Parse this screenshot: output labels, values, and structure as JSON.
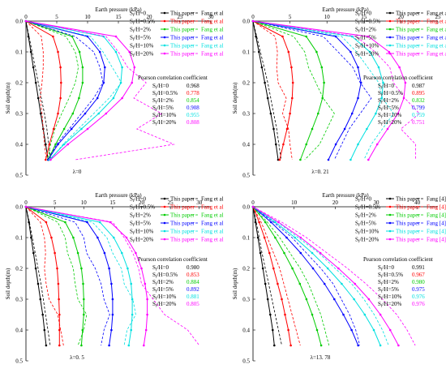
{
  "figure": {
    "common": {
      "x_label": "Earth pressure (kPa)",
      "y_label": "Soil depth(m)",
      "depth_ticks": [
        "0.0",
        "0.1",
        "0.2",
        "0.3",
        "0.4",
        "0.5"
      ],
      "corr_title": "Pearson correlation coefficient",
      "depth": [
        0.0,
        0.05,
        0.1,
        0.15,
        0.2,
        0.25,
        0.3,
        0.35,
        0.4,
        0.45
      ]
    },
    "series_style": [
      {
        "key": "0",
        "color": "#000000"
      },
      {
        "key": "0.5",
        "color": "#ff0000"
      },
      {
        "key": "2",
        "color": "#00cc00"
      },
      {
        "key": "5",
        "color": "#0000ff"
      },
      {
        "key": "10",
        "color": "#00e0e0"
      },
      {
        "key": "20",
        "color": "#ff00ff"
      }
    ]
  },
  "chart_data": [
    {
      "type": "line",
      "panel": "a",
      "lambda_label": "λ=0",
      "xlabel": "Earth pressure (kPa)",
      "ylabel": "Soil depth(m)",
      "xlim": [
        0,
        30
      ],
      "ylim": [
        0,
        0.5
      ],
      "x_ticks": [
        "0",
        "5",
        "10",
        "15",
        "20",
        "25",
        "30"
      ],
      "legend": {
        "ratio": [
          "S_f/H=0",
          "S_f/H=0.5%",
          "S_f/H=2%",
          "S_f/H=5%",
          "S_f/H=10%",
          "S_f/H=20%"
        ],
        "paper": "This paper",
        "ref": "Fang et al"
      },
      "correlation": [
        {
          "label": "S_f/H=0",
          "value": "0.968"
        },
        {
          "label": "S_f/H=0.5%",
          "value": "0.778"
        },
        {
          "label": "S_f/H=2%",
          "value": "0.854"
        },
        {
          "label": "S_f/H=5%",
          "value": "0.908"
        },
        {
          "label": "S_f/H=10%",
          "value": "0.955"
        },
        {
          "label": "S_f/H=20%",
          "value": "0.808"
        }
      ],
      "series": [
        {
          "name": "S_f/H=0 This paper",
          "x": [
            0.0,
            0.4,
            0.8,
            1.2,
            1.6,
            2.0,
            2.4,
            2.8,
            3.2,
            3.6
          ],
          "style": "paper"
        },
        {
          "name": "S_f/H=0 Fang et al",
          "x": [
            0.0,
            0.5,
            1.0,
            1.5,
            2.0,
            2.5,
            3.0,
            3.4,
            3.7,
            4.0
          ],
          "style": "ref"
        },
        {
          "name": "S_f/H=0.5% This paper",
          "x": [
            0.0,
            4.4,
            5.2,
            5.6,
            5.7,
            5.6,
            5.2,
            4.5,
            3.8,
            3.2
          ],
          "style": "paper"
        },
        {
          "name": "S_f/H=0.5% Fang et al",
          "x": [
            0.0,
            2.5,
            2.8,
            2.8,
            2.6,
            2.3,
            2.6,
            2.8,
            3.0,
            3.3
          ],
          "style": "ref"
        },
        {
          "name": "S_f/H=2% This paper",
          "x": [
            0.0,
            7.5,
            8.7,
            9.2,
            9.2,
            8.6,
            7.6,
            6.2,
            4.8,
            3.6
          ],
          "style": "paper"
        },
        {
          "name": "S_f/H=2% Fang et al",
          "x": [
            0.0,
            6.5,
            8.0,
            8.5,
            8.0,
            7.0,
            5.8,
            4.7,
            4.0,
            3.5
          ],
          "style": "ref"
        },
        {
          "name": "S_f/H=5% This paper",
          "x": [
            0.0,
            10.0,
            12.0,
            12.8,
            12.6,
            11.6,
            9.6,
            7.4,
            5.2,
            3.6
          ],
          "style": "paper"
        },
        {
          "name": "S_f/H=5% Fang et al",
          "x": [
            0.0,
            8.0,
            11.0,
            12.0,
            12.5,
            11.0,
            9.0,
            7.0,
            5.0,
            3.6
          ],
          "style": "ref"
        },
        {
          "name": "S_f/H=10% This paper",
          "x": [
            0.0,
            12.6,
            14.6,
            15.6,
            15.4,
            14.2,
            11.8,
            9.0,
            6.2,
            3.8
          ],
          "style": "paper"
        },
        {
          "name": "S_f/H=10% Fang et al",
          "x": [
            0.0,
            10.5,
            12.5,
            14.0,
            15.5,
            13.5,
            11.0,
            8.5,
            6.0,
            4.0
          ],
          "style": "ref"
        },
        {
          "name": "S_f/H=20% This paper",
          "x": [
            0.0,
            14.6,
            16.8,
            17.6,
            17.2,
            15.6,
            13.0,
            10.0,
            6.8,
            4.0
          ],
          "style": "paper"
        },
        {
          "name": "S_f/H=20% Fang et al",
          "x": [
            0.0,
            13.0,
            15.0,
            16.5,
            19.5,
            17.5,
            22.0,
            18.0,
            24.0,
            8.0
          ],
          "style": "ref"
        }
      ]
    },
    {
      "type": "line",
      "panel": "b",
      "lambda_label": "λ=0. 21",
      "xlabel": "Earth pressure (kPa)",
      "ylabel": "Soil depth(m)",
      "xlim": [
        0,
        25
      ],
      "ylim": [
        0,
        0.5
      ],
      "x_ticks": [
        "0",
        "5",
        "10",
        "15",
        "20",
        "25"
      ],
      "legend": {
        "ratio": [
          "S_f/H=0",
          "S_f/H=0.5%",
          "S_f/H=2%",
          "S_f/H=5%",
          "S_f/H=10%",
          "S_f/H=20%"
        ],
        "paper": "This paper",
        "ref": "Fang et al"
      },
      "correlation": [
        {
          "label": "S_f/H=0",
          "value": "0.987"
        },
        {
          "label": "S_f/H=0.5%",
          "value": "0.895"
        },
        {
          "label": "S_f/H=2%",
          "value": "0.832"
        },
        {
          "label": "S_f/H=5%",
          "value": "0.799"
        },
        {
          "label": "S_f/H=10%",
          "value": "0.759"
        },
        {
          "label": "S_f/H=20%",
          "value": "0.751"
        }
      ],
      "series": [
        {
          "name": "S_f/H=0 This paper",
          "x": [
            0.0,
            0.4,
            0.8,
            1.2,
            1.6,
            2.0,
            2.4,
            2.8,
            3.1,
            3.4
          ],
          "style": "paper"
        },
        {
          "name": "S_f/H=0 Fang et al",
          "x": [
            0.0,
            0.5,
            1.0,
            1.5,
            2.0,
            2.4,
            2.8,
            3.2,
            3.5,
            3.8
          ],
          "style": "ref"
        },
        {
          "name": "S_f/H=0.5% This paper",
          "x": [
            0.0,
            4.0,
            4.8,
            5.2,
            5.4,
            5.3,
            5.0,
            4.6,
            4.1,
            3.6
          ],
          "style": "paper"
        },
        {
          "name": "S_f/H=0.5% Fang et al",
          "x": [
            0.0,
            3.0,
            3.3,
            3.2,
            3.4,
            4.5,
            4.0,
            4.8,
            5.0,
            5.3
          ],
          "style": "ref"
        },
        {
          "name": "S_f/H=2% This paper",
          "x": [
            0.0,
            7.2,
            8.6,
            9.3,
            9.6,
            9.4,
            8.8,
            8.0,
            7.2,
            6.4
          ],
          "style": "paper"
        },
        {
          "name": "S_f/H=2% Fang et al",
          "x": [
            0.0,
            5.5,
            7.0,
            7.5,
            8.5,
            9.5,
            11.0,
            10.0,
            9.0,
            7.0
          ],
          "style": "ref"
        },
        {
          "name": "S_f/H=5% This paper",
          "x": [
            0.0,
            11.2,
            13.2,
            14.2,
            14.6,
            14.2,
            13.4,
            12.4,
            11.2,
            10.2
          ],
          "style": "paper"
        },
        {
          "name": "S_f/H=5% Fang et al",
          "x": [
            0.0,
            9.5,
            11.5,
            13.5,
            14.5,
            16.0,
            14.5,
            13.0,
            12.0,
            11.0
          ],
          "style": "ref"
        },
        {
          "name": "S_f/H=10% This paper",
          "x": [
            0.0,
            13.4,
            15.8,
            17.0,
            17.6,
            17.4,
            16.6,
            15.4,
            14.2,
            13.2
          ],
          "style": "paper"
        },
        {
          "name": "S_f/H=10% Fang et al",
          "x": [
            0.0,
            12.0,
            14.0,
            15.5,
            17.0,
            17.5,
            19.0,
            17.5,
            16.0,
            15.0
          ],
          "style": "ref"
        },
        {
          "name": "S_f/H=20% This paper",
          "x": [
            0.0,
            15.6,
            18.4,
            19.8,
            20.6,
            20.4,
            19.6,
            18.2,
            16.8,
            15.6
          ],
          "style": "paper"
        },
        {
          "name": "S_f/H=20% Fang et al",
          "x": [
            0.0,
            14.0,
            16.5,
            18.5,
            19.0,
            20.5,
            22.5,
            20.0,
            22.0,
            22.0
          ],
          "style": "ref"
        }
      ]
    },
    {
      "type": "line",
      "panel": "c",
      "lambda_label": "λ=0. 5",
      "xlabel": "Earth pressure (kPa)",
      "ylabel": "Soil depth(m)",
      "xlim": [
        0,
        32
      ],
      "ylim": [
        0,
        0.5
      ],
      "x_ticks": [
        "0",
        "5",
        "10",
        "15",
        "20",
        "25",
        "30"
      ],
      "legend": {
        "ratio": [
          "S_f/H=0",
          "S_f/H=0.5%",
          "S_f/H=2%",
          "S_f/H=5%",
          "S_f/H=10%",
          "S_f/H=20%"
        ],
        "paper": "This paper",
        "ref": "Fang et al"
      },
      "correlation": [
        {
          "label": "S_f/H=0",
          "value": "0.980"
        },
        {
          "label": "S_f/H=0.5%",
          "value": "0.853"
        },
        {
          "label": "S_f/H=2%",
          "value": "0.884"
        },
        {
          "label": "S_f/H=5%",
          "value": "0.892"
        },
        {
          "label": "S_f/H=10%",
          "value": "0.881"
        },
        {
          "label": "S_f/H=20%",
          "value": "0.805"
        }
      ],
      "series": [
        {
          "name": "S_f/H=0 This paper",
          "x": [
            0.0,
            0.5,
            0.9,
            1.3,
            1.7,
            2.1,
            2.5,
            2.9,
            3.2,
            3.5
          ],
          "style": "paper"
        },
        {
          "name": "S_f/H=0 Fang et al",
          "x": [
            0.0,
            0.6,
            1.1,
            1.6,
            2.1,
            2.6,
            3.0,
            3.4,
            3.8,
            4.2
          ],
          "style": "ref"
        },
        {
          "name": "S_f/H=0.5% This paper",
          "x": [
            0.0,
            3.5,
            4.4,
            5.0,
            5.4,
            5.6,
            5.7,
            5.8,
            5.8,
            5.8
          ],
          "style": "paper"
        },
        {
          "name": "S_f/H=0.5% Fang et al",
          "x": [
            0.0,
            2.5,
            3.2,
            3.4,
            3.2,
            3.5,
            4.0,
            5.5,
            6.0,
            6.5
          ],
          "style": "ref"
        },
        {
          "name": "S_f/H=2% This paper",
          "x": [
            0.0,
            6.8,
            8.2,
            9.0,
            9.6,
            9.9,
            10.0,
            10.0,
            9.8,
            9.6
          ],
          "style": "paper"
        },
        {
          "name": "S_f/H=2% Fang et al",
          "x": [
            0.0,
            5.5,
            6.8,
            7.2,
            8.2,
            8.5,
            9.0,
            10.5,
            10.0,
            9.0
          ],
          "style": "ref"
        },
        {
          "name": "S_f/H=5% This paper",
          "x": [
            0.0,
            10.6,
            12.4,
            13.6,
            14.4,
            14.8,
            15.0,
            15.0,
            14.8,
            14.4
          ],
          "style": "paper"
        },
        {
          "name": "S_f/H=5% Fang et al",
          "x": [
            0.0,
            8.5,
            10.0,
            10.5,
            12.0,
            13.0,
            13.5,
            14.5,
            13.5,
            13.0
          ],
          "style": "ref"
        },
        {
          "name": "S_f/H=10% This paper",
          "x": [
            0.0,
            12.8,
            15.2,
            16.6,
            17.6,
            18.2,
            18.4,
            18.4,
            18.2,
            17.8
          ],
          "style": "paper"
        },
        {
          "name": "S_f/H=10% Fang et al",
          "x": [
            0.0,
            11.5,
            14.0,
            15.0,
            16.5,
            17.0,
            18.5,
            19.0,
            17.5,
            17.0
          ],
          "style": "ref"
        },
        {
          "name": "S_f/H=20% This paper",
          "x": [
            0.0,
            14.6,
            17.4,
            19.0,
            20.0,
            20.6,
            21.0,
            21.0,
            20.8,
            20.4
          ],
          "style": "paper"
        },
        {
          "name": "S_f/H=20% Fang et al",
          "x": [
            0.0,
            15.0,
            17.0,
            18.5,
            19.5,
            20.0,
            22.0,
            24.0,
            28.0,
            30.0
          ],
          "style": "ref"
        }
      ]
    },
    {
      "type": "line",
      "panel": "d",
      "lambda_label": "λ=13. 78",
      "xlabel": "Earth pressure (kPa)",
      "ylabel": "Soil depth(m)",
      "xlim": [
        0,
        45
      ],
      "ylim": [
        0,
        0.5
      ],
      "x_ticks": [
        "0",
        "10",
        "20",
        "30",
        "40"
      ],
      "legend": {
        "ratio": [
          "S_f/H=0",
          "S_f/H=0.5%",
          "S_f/H=2%",
          "S_f/H=5%",
          "S_f/H=10%",
          "S_f/H=20%"
        ],
        "paper": "This paper",
        "ref": "Fang [4]"
      },
      "correlation": [
        {
          "label": "S_f/H=0",
          "value": "0.991"
        },
        {
          "label": "S_f/H=0.5%",
          "value": "0.967"
        },
        {
          "label": "S_f/H=2%",
          "value": "0.980"
        },
        {
          "label": "S_f/H=5%",
          "value": "0.975"
        },
        {
          "label": "S_f/H=10%",
          "value": "0.976"
        },
        {
          "label": "S_f/H=20%",
          "value": "0.976"
        }
      ],
      "series": [
        {
          "name": "S_f/H=0 This paper",
          "x": [
            0.0,
            0.6,
            1.2,
            1.8,
            2.4,
            3.0,
            3.6,
            4.2,
            4.8,
            5.2
          ],
          "style": "paper"
        },
        {
          "name": "S_f/H=0 Fang [4]",
          "x": [
            0.0,
            0.8,
            1.5,
            2.2,
            3.0,
            3.8,
            4.6,
            5.4,
            6.2,
            7.0
          ],
          "style": "ref"
        },
        {
          "name": "S_f/H=0.5% This paper",
          "x": [
            0.0,
            1.5,
            2.8,
            4.0,
            5.0,
            6.0,
            7.0,
            7.8,
            8.6,
            9.2
          ],
          "style": "paper"
        },
        {
          "name": "S_f/H=0.5% Fang [4]",
          "x": [
            0.0,
            2.0,
            3.5,
            5.0,
            6.5,
            7.5,
            8.5,
            9.5,
            10.5,
            11.5
          ],
          "style": "ref"
        },
        {
          "name": "S_f/H=2% This paper",
          "x": [
            0.0,
            3.0,
            5.4,
            7.6,
            9.6,
            11.4,
            13.0,
            14.4,
            15.6,
            16.6
          ],
          "style": "paper"
        },
        {
          "name": "S_f/H=2% Fang [4]",
          "x": [
            0.0,
            3.5,
            6.5,
            9.0,
            11.5,
            13.5,
            15.0,
            16.5,
            17.5,
            18.5
          ],
          "style": "ref"
        },
        {
          "name": "S_f/H=5% This paper",
          "x": [
            0.0,
            4.4,
            8.2,
            11.6,
            14.6,
            17.4,
            19.8,
            22.0,
            24.0,
            25.6
          ],
          "style": "paper"
        },
        {
          "name": "S_f/H=5% Fang [4]",
          "x": [
            0.0,
            5.0,
            9.5,
            13.0,
            16.5,
            19.5,
            21.5,
            23.5,
            25.0,
            26.0
          ],
          "style": "ref"
        },
        {
          "name": "S_f/H=10% This paper",
          "x": [
            0.0,
            5.4,
            10.2,
            14.4,
            18.2,
            21.6,
            24.6,
            27.2,
            29.4,
            31.0
          ],
          "style": "paper"
        },
        {
          "name": "S_f/H=10% Fang [4]",
          "x": [
            0.0,
            6.0,
            11.0,
            16.0,
            20.0,
            24.0,
            27.0,
            29.5,
            31.5,
            33.0
          ],
          "style": "ref"
        },
        {
          "name": "S_f/H=20% This paper",
          "x": [
            0.0,
            6.2,
            11.6,
            16.4,
            20.8,
            24.8,
            28.2,
            31.0,
            33.4,
            35.4
          ],
          "style": "paper"
        },
        {
          "name": "S_f/H=20% Fang [4]",
          "x": [
            0.0,
            7.0,
            13.0,
            18.0,
            23.0,
            27.5,
            31.5,
            35.0,
            37.5,
            39.5
          ],
          "style": "ref"
        }
      ]
    }
  ]
}
